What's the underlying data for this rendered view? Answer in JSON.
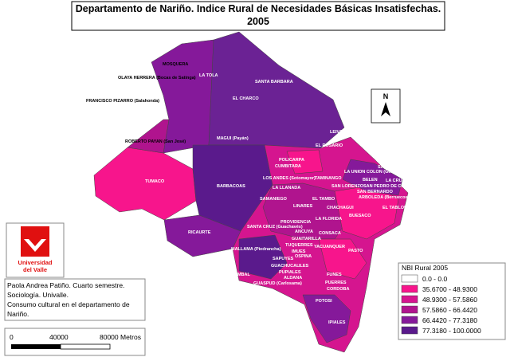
{
  "title": {
    "line1": "Departamento de Nariño. Indice Rural de Necesidades Básicas Insatisfechas.",
    "line2": "2005"
  },
  "north": "N",
  "labels": [
    "MOSQUERA",
    "OLAYA HERRERA (Bocas de Satinga)",
    "LA TOLA",
    "SANTA BARBARA",
    "FRANCISCO PIZARRO (Salahonda)",
    "EL CHARCO",
    "LEIVA",
    "ROBERTO PAYAN (San José)",
    "MAGUI (Payán)",
    "EL ROSARIO",
    "POLICARPA",
    "CUMBITARA",
    "SAN PABLO",
    "LA UNION COLON (Génova)",
    "TAMINANGO",
    "LOS ANDES (Sotomayor)",
    "BELEN",
    "LA CRUZ",
    "SAN LORENZO",
    "SAN PEDRO DE CARTAGO (Cartago)",
    "TUMACO",
    "BARBACOAS",
    "LA LLANADA",
    "SAN BERNARDO",
    "ARBOLEDA (Berruecos)",
    "SAMANIEGO",
    "EL TAMBO",
    "CHACHAGUI",
    "LINARES",
    "EL TABLON",
    "BUESACO",
    "PROVIDENCIA",
    "LA FLORIDA",
    "SANTA CRUZ (Guachavés)",
    "ANCUYA",
    "CONSACA",
    "RICAURTE",
    "GUAITARILLA",
    "TUQUERRES",
    "YACUANQUER",
    "MALLAMA (Piedrancha)",
    "IMUES",
    "OSPINA",
    "PASTO",
    "SAPUYES",
    "GUACHUCAL",
    "ILES",
    "CUMBAL",
    "PUPIALES",
    "FUNES",
    "ALDANA",
    "GUASPUD (Carlosama)",
    "PUERRES",
    "CORDOBA",
    "POTOSI",
    "IPIALES"
  ],
  "logo": {
    "line1": "Universidad",
    "line2": "del Valle"
  },
  "author": [
    "Paola Andrea Patiño. Cuarto semestre.",
    "Sociología. Univalle.",
    "Consumo cultural en el departamento de",
    "Nariño."
  ],
  "scale": [
    "0",
    "40000",
    "80000 Metros"
  ],
  "legend": {
    "title": "NBI Rural 2005",
    "items": [
      {
        "label": "0.0 - 0.0",
        "color": "#ffffff"
      },
      {
        "label": "35.6700 - 48.9300",
        "color": "#f7158c"
      },
      {
        "label": "48.9300 - 57.5860",
        "color": "#d5158f"
      },
      {
        "label": "57.5860 - 66.4420",
        "color": "#b0148e"
      },
      {
        "label": "66.4420 - 77.3180",
        "color": "#85199a"
      },
      {
        "label": "77.3180 - 100.0000",
        "color": "#5a1a8c"
      }
    ]
  }
}
